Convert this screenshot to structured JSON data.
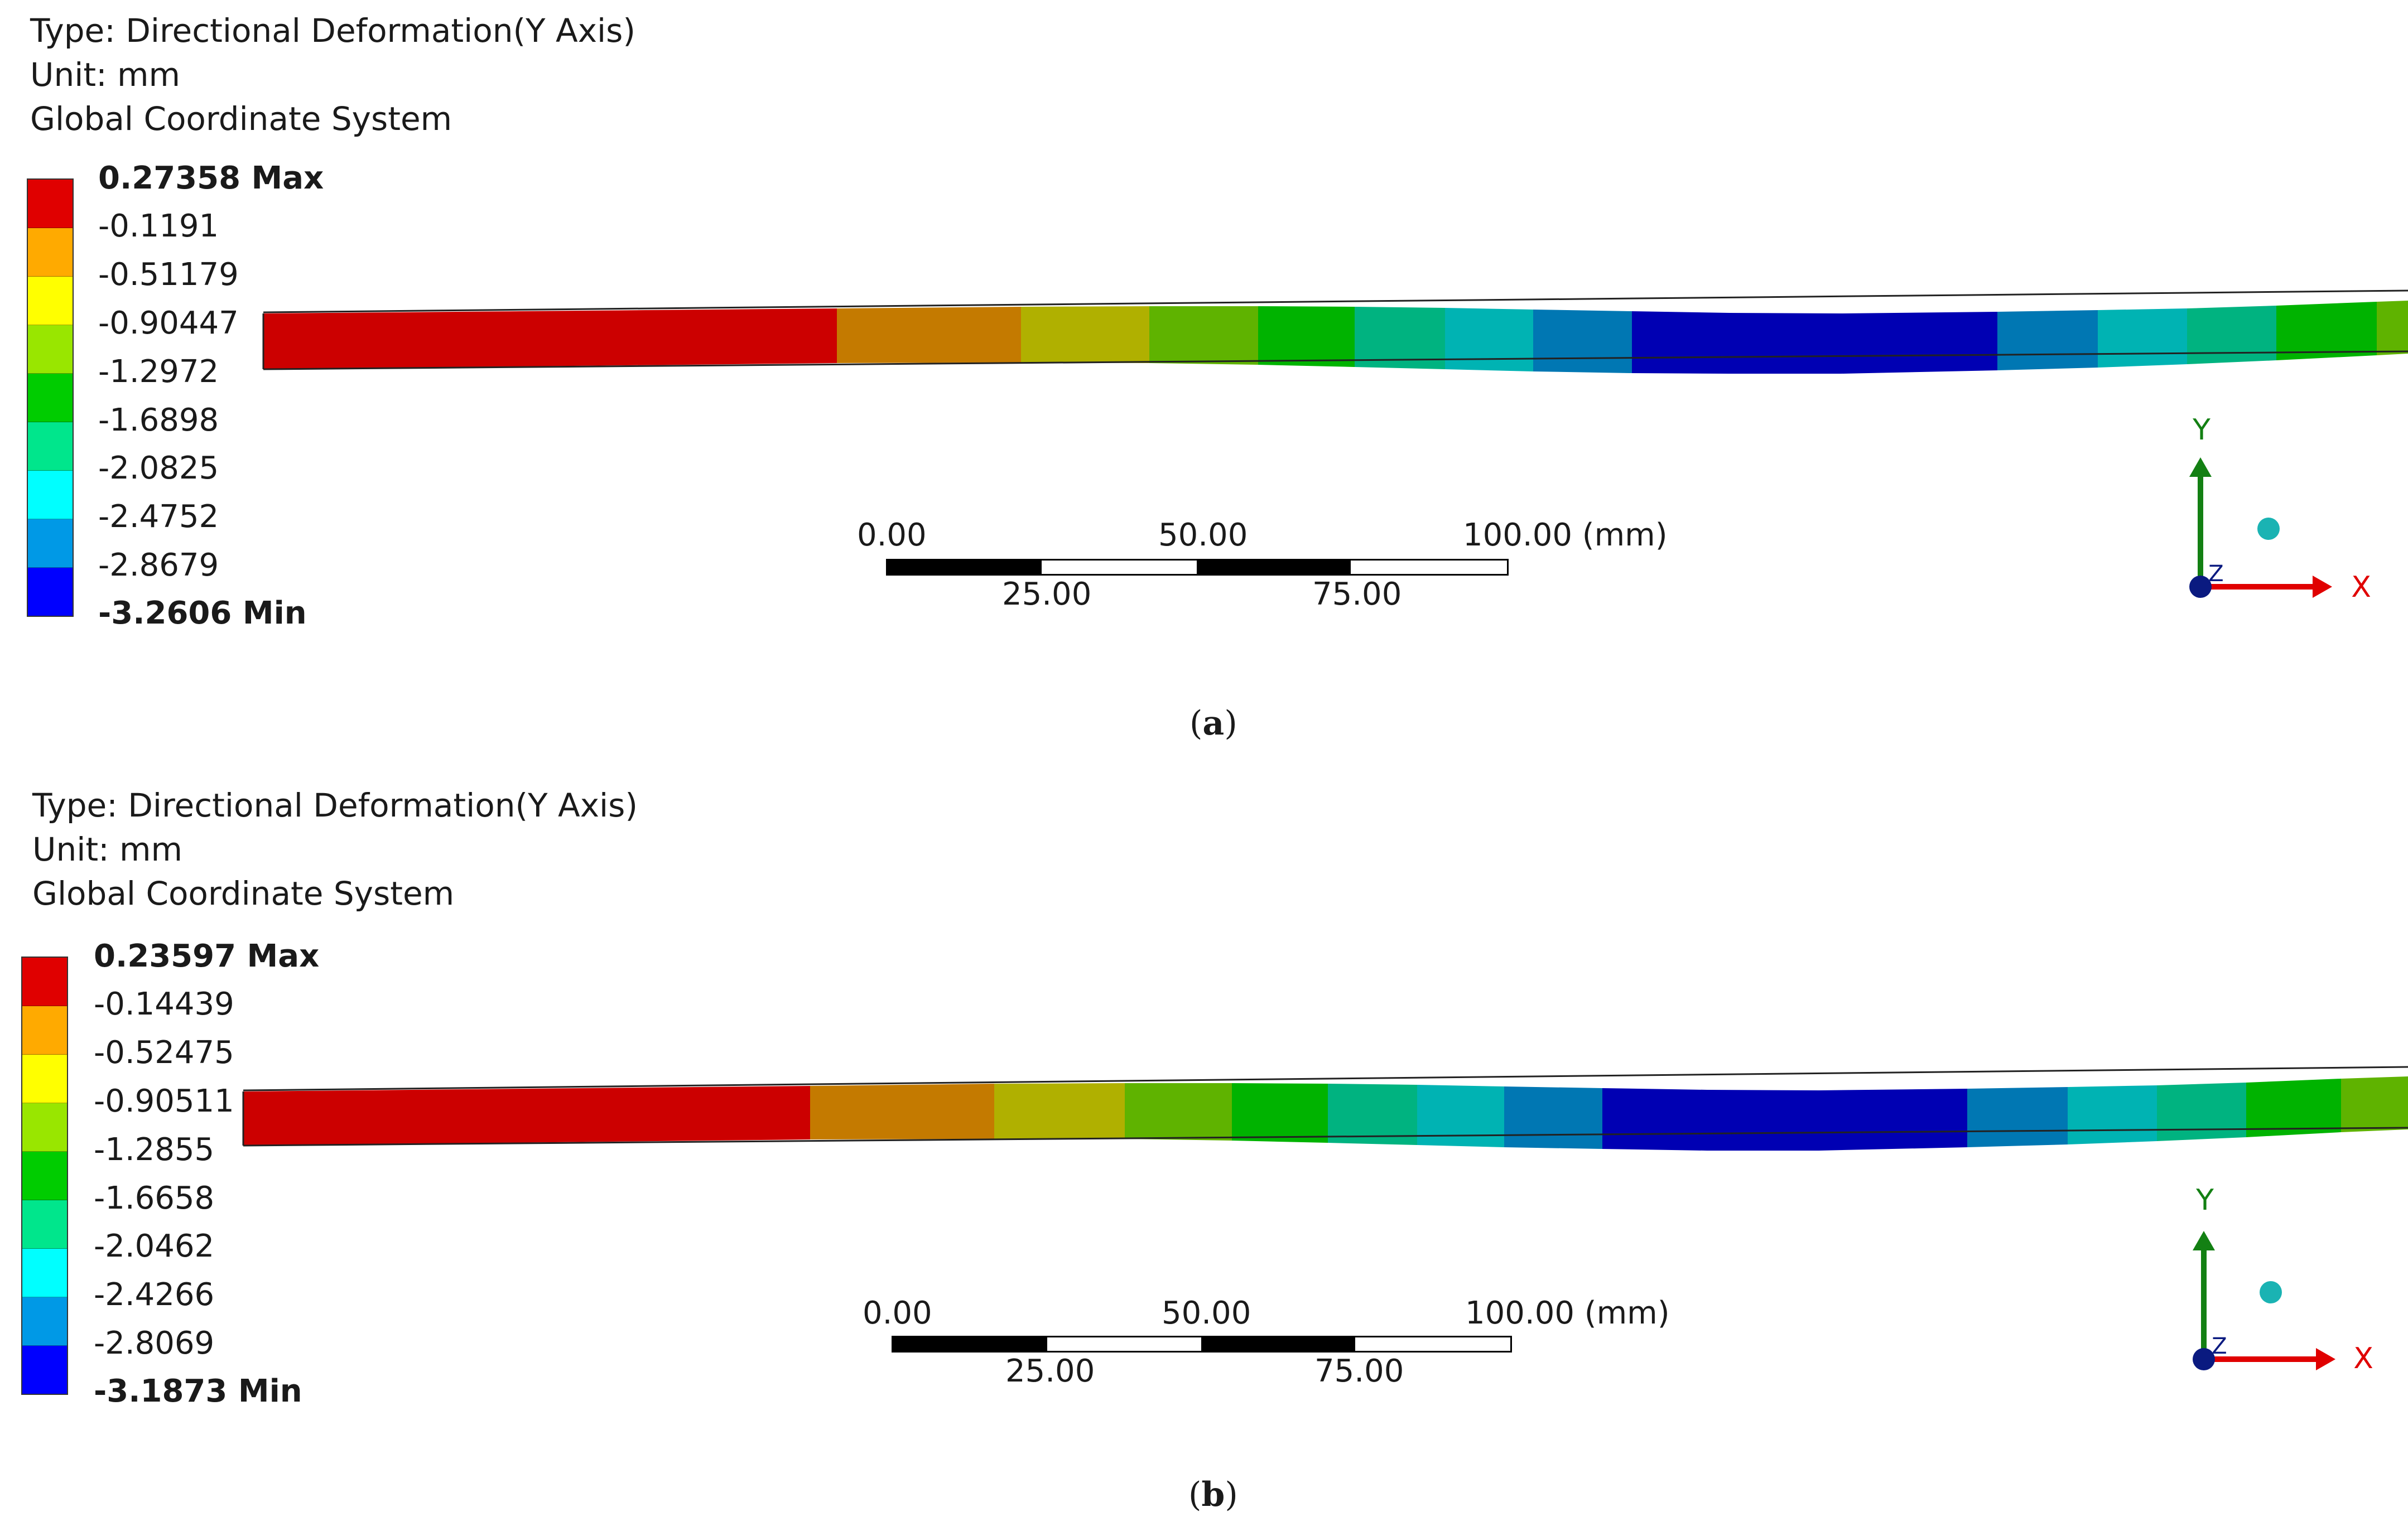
{
  "panels": [
    {
      "id": "a",
      "info_type": "Type: Directional Deformation(Y Axis)",
      "info_unit": "Unit: mm",
      "info_cs": "Global Coordinate System",
      "legend": [
        "0.27358 Max",
        "-0.1191",
        "-0.51179",
        "-0.90447",
        "-1.2972",
        "-1.6898",
        "-2.0825",
        "-2.4752",
        "-2.8679",
        "-3.2606 Min"
      ],
      "scale_top": [
        "0.00",
        "50.00",
        "100.00 (mm)"
      ],
      "scale_bottom": [
        "25.00",
        "75.00"
      ],
      "caption_letter": "a",
      "triad": {
        "y": "Y",
        "x": "X",
        "z": "Z"
      }
    },
    {
      "id": "b",
      "info_type": "Type: Directional Deformation(Y Axis)",
      "info_unit": "Unit: mm",
      "info_cs": "Global Coordinate System",
      "legend": [
        "0.23597 Max",
        "-0.14439",
        "-0.52475",
        "-0.90511",
        "-1.2855",
        "-1.6658",
        "-2.0462",
        "-2.4266",
        "-2.8069",
        "-3.1873 Min"
      ],
      "scale_top": [
        "0.00",
        "50.00",
        "100.00 (mm)"
      ],
      "scale_bottom": [
        "25.00",
        "75.00"
      ],
      "caption_letter": "b",
      "triad": {
        "y": "Y",
        "x": "X",
        "z": "Z"
      }
    }
  ],
  "colors": {
    "contour": [
      "#e00000",
      "#ffaa00",
      "#ffff00",
      "#99e600",
      "#00cc00",
      "#00e68c",
      "#00ffff",
      "#0099e6",
      "#0000ff"
    ],
    "beam_shaded": [
      "#cc0000",
      "#c47a00",
      "#b0b000",
      "#5fb300",
      "#00b300",
      "#00b380",
      "#00b3b3",
      "#0077b3",
      "#0000b3"
    ],
    "axis_y": "#138013",
    "axis_x": "#e00000",
    "axis_origin": "#0a1a80",
    "sphere": "#1ab3b3"
  }
}
